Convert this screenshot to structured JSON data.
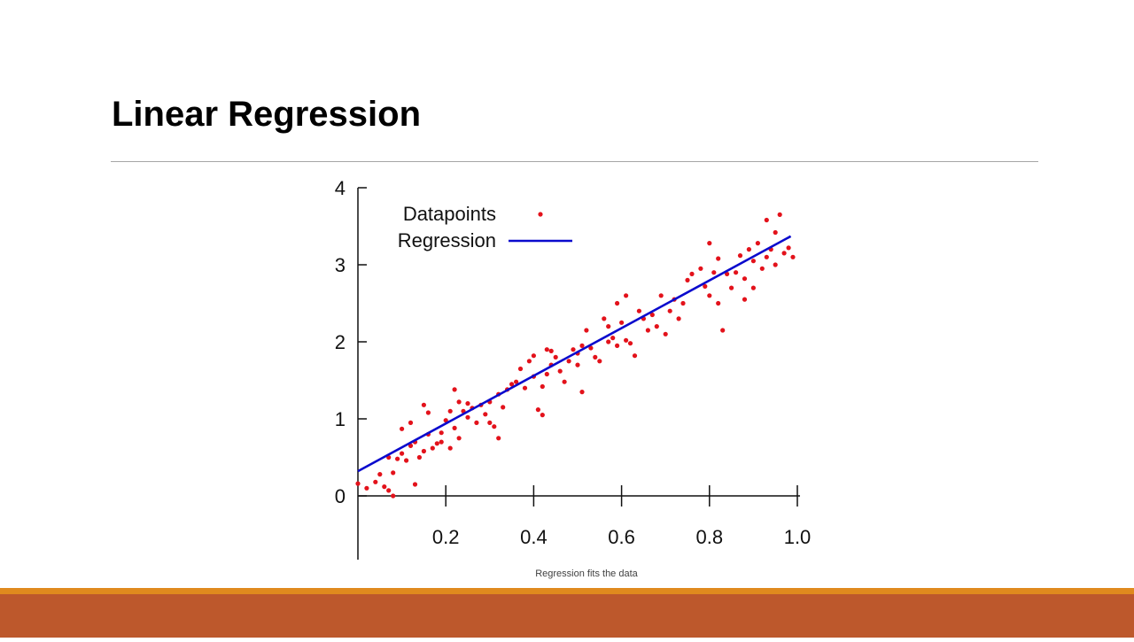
{
  "slide": {
    "title": "Linear Regression",
    "caption": "Regression fits the data"
  },
  "theme": {
    "title_rule_color": "#a6a6a6",
    "footer_accent_color": "#e08a1e",
    "footer_bar_color": "#bd582c"
  },
  "chart_data": {
    "type": "scatter",
    "title": "",
    "xlabel": "",
    "ylabel": "",
    "xlim": [
      0,
      1.0
    ],
    "ylim": [
      -0.85,
      4.1
    ],
    "x_ticks": [
      0.2,
      0.4,
      0.6,
      0.8,
      1.0
    ],
    "x_tick_labels": [
      "0.2",
      "0.4",
      "0.6",
      "0.8",
      "1.0"
    ],
    "y_ticks": [
      0,
      1,
      2,
      3,
      4
    ],
    "y_tick_labels": [
      "0",
      "1",
      "2",
      "3",
      "4"
    ],
    "grid": false,
    "legend_position": "top-left",
    "series": [
      {
        "name": "Datapoints",
        "kind": "scatter",
        "color": "#e3121b",
        "points": [
          [
            0.0,
            0.16
          ],
          [
            0.02,
            0.1
          ],
          [
            0.04,
            0.18
          ],
          [
            0.05,
            0.28
          ],
          [
            0.06,
            0.12
          ],
          [
            0.07,
            0.5
          ],
          [
            0.07,
            0.07
          ],
          [
            0.08,
            0.0
          ],
          [
            0.08,
            0.3
          ],
          [
            0.09,
            0.48
          ],
          [
            0.1,
            0.55
          ],
          [
            0.1,
            0.87
          ],
          [
            0.11,
            0.46
          ],
          [
            0.12,
            0.95
          ],
          [
            0.12,
            0.65
          ],
          [
            0.13,
            0.15
          ],
          [
            0.13,
            0.7
          ],
          [
            0.14,
            0.5
          ],
          [
            0.15,
            0.58
          ],
          [
            0.15,
            1.18
          ],
          [
            0.16,
            1.08
          ],
          [
            0.16,
            0.8
          ],
          [
            0.17,
            0.62
          ],
          [
            0.18,
            0.68
          ],
          [
            0.19,
            0.82
          ],
          [
            0.19,
            0.7
          ],
          [
            0.2,
            0.98
          ],
          [
            0.21,
            0.62
          ],
          [
            0.21,
            1.1
          ],
          [
            0.22,
            1.38
          ],
          [
            0.22,
            0.88
          ],
          [
            0.23,
            1.22
          ],
          [
            0.23,
            0.75
          ],
          [
            0.24,
            1.1
          ],
          [
            0.25,
            1.2
          ],
          [
            0.25,
            1.02
          ],
          [
            0.26,
            1.14
          ],
          [
            0.27,
            0.95
          ],
          [
            0.28,
            1.18
          ],
          [
            0.29,
            1.06
          ],
          [
            0.3,
            0.95
          ],
          [
            0.3,
            1.22
          ],
          [
            0.31,
            0.9
          ],
          [
            0.32,
            1.32
          ],
          [
            0.32,
            0.75
          ],
          [
            0.33,
            1.15
          ],
          [
            0.34,
            1.38
          ],
          [
            0.35,
            1.45
          ],
          [
            0.36,
            1.48
          ],
          [
            0.37,
            1.65
          ],
          [
            0.38,
            1.4
          ],
          [
            0.39,
            1.75
          ],
          [
            0.4,
            1.82
          ],
          [
            0.4,
            1.55
          ],
          [
            0.41,
            1.12
          ],
          [
            0.42,
            1.05
          ],
          [
            0.42,
            1.42
          ],
          [
            0.43,
            1.9
          ],
          [
            0.43,
            1.58
          ],
          [
            0.44,
            1.88
          ],
          [
            0.44,
            1.7
          ],
          [
            0.45,
            1.8
          ],
          [
            0.46,
            1.62
          ],
          [
            0.47,
            1.48
          ],
          [
            0.48,
            1.75
          ],
          [
            0.49,
            1.9
          ],
          [
            0.5,
            1.7
          ],
          [
            0.5,
            1.85
          ],
          [
            0.51,
            1.95
          ],
          [
            0.51,
            1.35
          ],
          [
            0.52,
            2.15
          ],
          [
            0.53,
            1.92
          ],
          [
            0.54,
            1.8
          ],
          [
            0.55,
            1.75
          ],
          [
            0.56,
            2.3
          ],
          [
            0.57,
            2.0
          ],
          [
            0.57,
            2.2
          ],
          [
            0.58,
            2.05
          ],
          [
            0.59,
            1.95
          ],
          [
            0.59,
            2.5
          ],
          [
            0.6,
            2.25
          ],
          [
            0.61,
            2.02
          ],
          [
            0.61,
            2.6
          ],
          [
            0.62,
            1.98
          ],
          [
            0.63,
            1.82
          ],
          [
            0.64,
            2.4
          ],
          [
            0.65,
            2.3
          ],
          [
            0.66,
            2.15
          ],
          [
            0.67,
            2.35
          ],
          [
            0.68,
            2.2
          ],
          [
            0.69,
            2.6
          ],
          [
            0.7,
            2.1
          ],
          [
            0.71,
            2.4
          ],
          [
            0.72,
            2.55
          ],
          [
            0.73,
            2.3
          ],
          [
            0.74,
            2.5
          ],
          [
            0.75,
            2.8
          ],
          [
            0.76,
            2.88
          ],
          [
            0.78,
            2.95
          ],
          [
            0.79,
            2.72
          ],
          [
            0.8,
            3.28
          ],
          [
            0.8,
            2.6
          ],
          [
            0.81,
            2.9
          ],
          [
            0.82,
            2.5
          ],
          [
            0.82,
            3.08
          ],
          [
            0.83,
            2.15
          ],
          [
            0.84,
            2.88
          ],
          [
            0.85,
            2.7
          ],
          [
            0.86,
            2.9
          ],
          [
            0.87,
            3.12
          ],
          [
            0.88,
            2.82
          ],
          [
            0.88,
            2.55
          ],
          [
            0.89,
            3.2
          ],
          [
            0.9,
            2.7
          ],
          [
            0.9,
            3.05
          ],
          [
            0.91,
            3.28
          ],
          [
            0.92,
            2.95
          ],
          [
            0.93,
            3.1
          ],
          [
            0.93,
            3.58
          ],
          [
            0.94,
            3.2
          ],
          [
            0.95,
            3.42
          ],
          [
            0.95,
            3.0
          ],
          [
            0.96,
            3.65
          ],
          [
            0.97,
            3.15
          ],
          [
            0.98,
            3.22
          ],
          [
            0.99,
            3.1
          ]
        ]
      },
      {
        "name": "Regression",
        "kind": "line",
        "color": "#0a0acd",
        "points": [
          [
            0.0,
            0.32
          ],
          [
            0.985,
            3.37
          ]
        ]
      }
    ]
  }
}
